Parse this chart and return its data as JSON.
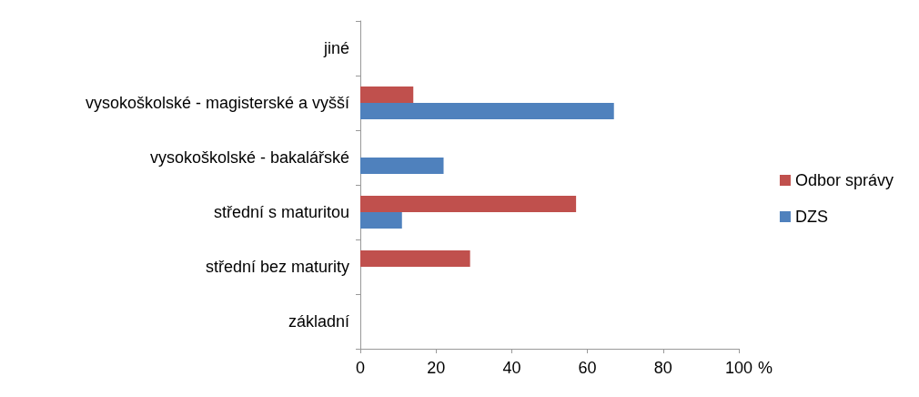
{
  "chart_data": {
    "type": "bar",
    "orientation": "horizontal",
    "xlabel": "%",
    "categories": [
      "jiné",
      "vysokoškolské - magisterské a vyšší",
      "vysokoškolské - bakalářské",
      "střední s maturitou",
      "střední bez maturity",
      "základní"
    ],
    "series": [
      {
        "name": "Odbor správy",
        "color": "#c0504d",
        "values": [
          0,
          14,
          0,
          57,
          29,
          0
        ]
      },
      {
        "name": "DZS",
        "color": "#4f81bd",
        "values": [
          0,
          67,
          22,
          11,
          0,
          0
        ]
      }
    ],
    "xlim": [
      0,
      100
    ],
    "xticks": [
      0,
      20,
      40,
      60,
      80,
      100
    ],
    "grid": false,
    "legend": "right"
  }
}
